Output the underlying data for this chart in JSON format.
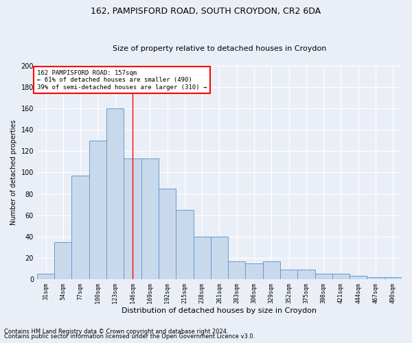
{
  "title1": "162, PAMPISFORD ROAD, SOUTH CROYDON, CR2 6DA",
  "title2": "Size of property relative to detached houses in Croydon",
  "xlabel": "Distribution of detached houses by size in Croydon",
  "ylabel": "Number of detached properties",
  "footnote1": "Contains HM Land Registry data © Crown copyright and database right 2024.",
  "footnote2": "Contains public sector information licensed under the Open Government Licence v3.0.",
  "categories": [
    "31sqm",
    "54sqm",
    "77sqm",
    "100sqm",
    "123sqm",
    "146sqm",
    "169sqm",
    "192sqm",
    "215sqm",
    "238sqm",
    "261sqm",
    "283sqm",
    "306sqm",
    "329sqm",
    "352sqm",
    "375sqm",
    "398sqm",
    "421sqm",
    "444sqm",
    "467sqm",
    "490sqm"
  ],
  "values": [
    5,
    35,
    97,
    130,
    160,
    113,
    113,
    85,
    65,
    40,
    40,
    17,
    15,
    17,
    9,
    9,
    5,
    5,
    3,
    2,
    2
  ],
  "bar_color": "#c9d9ec",
  "bar_edge_color": "#6699cc",
  "vline_x_index": 4.98,
  "vline_color": "red",
  "annotation_text": "162 PAMPISFORD ROAD: 157sqm\n← 61% of detached houses are smaller (490)\n39% of semi-detached houses are larger (310) →",
  "annotation_box_color": "white",
  "annotation_box_edge": "red",
  "bg_color": "#eaeff7",
  "grid_color": "white",
  "ylim": [
    0,
    200
  ],
  "yticks": [
    0,
    20,
    40,
    60,
    80,
    100,
    120,
    140,
    160,
    180,
    200
  ],
  "title1_fontsize": 9,
  "title2_fontsize": 8,
  "xlabel_fontsize": 8,
  "ylabel_fontsize": 7,
  "xtick_fontsize": 6,
  "ytick_fontsize": 7,
  "footnote_fontsize": 6
}
